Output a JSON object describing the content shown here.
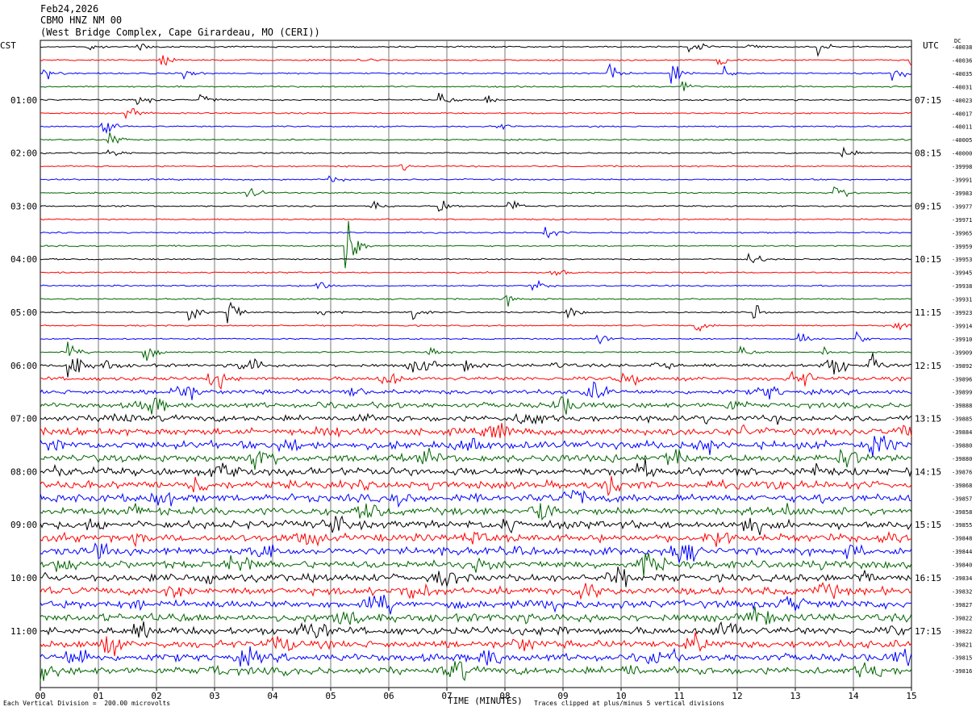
{
  "header": {
    "date": "Feb24,2026",
    "station": "CBMO HNZ NM 00",
    "location": "(West Bridge Complex, Cape Girardeau, MO (CERI))"
  },
  "left_timezone": "CST",
  "right_timezone": "UTC",
  "dc_label": "DC",
  "left_hour_labels": [
    "01:00",
    "02:00",
    "03:00",
    "04:00",
    "05:00",
    "06:00",
    "07:00",
    "08:00",
    "09:00",
    "10:00",
    "11:00"
  ],
  "right_hour_labels": [
    "07:15",
    "08:15",
    "09:15",
    "10:15",
    "11:15",
    "12:15",
    "13:15",
    "14:15",
    "15:15",
    "16:15",
    "17:15"
  ],
  "dc_offsets": [
    "-40038",
    "-40036",
    "-40035",
    "-40031",
    "-40023",
    "-40017",
    "-40011",
    "-40005",
    "-40000",
    "-39998",
    "-39991",
    "-39983",
    "-39977",
    "-39971",
    "-39965",
    "-39959",
    "-39953",
    "-39945",
    "-39938",
    "-39931",
    "-39923",
    "-39914",
    "-39910",
    "-39909",
    "-39892",
    "-39896",
    "-39899",
    "-39888",
    "-39885",
    "-39884",
    "-39880",
    "-39880",
    "-39876",
    "-39868",
    "-39857",
    "-39858",
    "-39855",
    "-39848",
    "-39844",
    "-39840",
    "-39834",
    "-39832",
    "-39827",
    "-39822",
    "-39822",
    "-39821",
    "-39815",
    "-39816"
  ],
  "x_axis": {
    "label": "TIME (MINUTES)",
    "ticks": [
      "00",
      "01",
      "02",
      "03",
      "04",
      "05",
      "06",
      "07",
      "08",
      "09",
      "10",
      "11",
      "12",
      "13",
      "14",
      "15"
    ]
  },
  "footer": {
    "scale_note": "Each Vertical Division =  200.00 microvolts",
    "clip_note": "Traces clipped at plus/minus 5 vertical divisions"
  },
  "colors": {
    "trace_cycle": [
      "#000000",
      "#ff0000",
      "#0000ff",
      "#006400"
    ],
    "grid": "#777777"
  },
  "chart_data": {
    "type": "helicorder",
    "rows": 48,
    "minutes_per_row": 15,
    "x_range_minutes": [
      0,
      15
    ],
    "events": [
      {
        "row": 0,
        "minute": 0.8,
        "amp": 0.4
      },
      {
        "row": 0,
        "minute": 1.7,
        "amp": 0.6
      },
      {
        "row": 0,
        "minute": 11.2,
        "amp": 0.8
      },
      {
        "row": 0,
        "minute": 12.2,
        "amp": 0.4
      },
      {
        "row": 0,
        "minute": 13.4,
        "amp": 0.5
      },
      {
        "row": 1,
        "minute": 2.1,
        "amp": 0.5
      },
      {
        "row": 1,
        "minute": 5.5,
        "amp": 0.4
      },
      {
        "row": 1,
        "minute": 11.7,
        "amp": 0.7
      },
      {
        "row": 1,
        "minute": 15.0,
        "amp": 0.8
      },
      {
        "row": 2,
        "minute": 0.1,
        "amp": 0.5
      },
      {
        "row": 2,
        "minute": 2.5,
        "amp": 0.6
      },
      {
        "row": 2,
        "minute": 9.8,
        "amp": 0.8
      },
      {
        "row": 2,
        "minute": 10.9,
        "amp": 0.9
      },
      {
        "row": 2,
        "minute": 11.8,
        "amp": 0.4
      },
      {
        "row": 2,
        "minute": 14.7,
        "amp": 1.0
      },
      {
        "row": 3,
        "minute": 11.1,
        "amp": 0.6
      },
      {
        "row": 4,
        "minute": 1.7,
        "amp": 0.5
      },
      {
        "row": 4,
        "minute": 2.8,
        "amp": 0.5
      },
      {
        "row": 4,
        "minute": 6.9,
        "amp": 0.8
      },
      {
        "row": 4,
        "minute": 7.7,
        "amp": 0.5
      },
      {
        "row": 5,
        "minute": 1.5,
        "amp": 0.6
      },
      {
        "row": 6,
        "minute": 1.1,
        "amp": 1.0
      },
      {
        "row": 6,
        "minute": 7.9,
        "amp": 0.3
      },
      {
        "row": 7,
        "minute": 1.2,
        "amp": 0.7
      },
      {
        "row": 8,
        "minute": 1.2,
        "amp": 0.4
      },
      {
        "row": 8,
        "minute": 13.8,
        "amp": 0.7
      },
      {
        "row": 9,
        "minute": 6.2,
        "amp": 0.4
      },
      {
        "row": 10,
        "minute": 5.0,
        "amp": 0.4
      },
      {
        "row": 11,
        "minute": 3.6,
        "amp": 0.6
      },
      {
        "row": 11,
        "minute": 13.7,
        "amp": 0.8
      },
      {
        "row": 12,
        "minute": 5.7,
        "amp": 0.5
      },
      {
        "row": 12,
        "minute": 6.9,
        "amp": 0.6
      },
      {
        "row": 12,
        "minute": 8.1,
        "amp": 0.6
      },
      {
        "row": 14,
        "minute": 8.7,
        "amp": 0.6
      },
      {
        "row": 15,
        "minute": 5.3,
        "amp": 3.0
      },
      {
        "row": 16,
        "minute": 12.2,
        "amp": 0.7
      },
      {
        "row": 17,
        "minute": 8.8,
        "amp": 0.9
      },
      {
        "row": 18,
        "minute": 4.8,
        "amp": 0.6
      },
      {
        "row": 18,
        "minute": 8.5,
        "amp": 0.5
      },
      {
        "row": 19,
        "minute": 8.0,
        "amp": 0.6
      },
      {
        "row": 20,
        "minute": 2.6,
        "amp": 0.6
      },
      {
        "row": 20,
        "minute": 3.2,
        "amp": 2.2
      },
      {
        "row": 20,
        "minute": 4.8,
        "amp": 0.4
      },
      {
        "row": 20,
        "minute": 6.4,
        "amp": 0.6
      },
      {
        "row": 20,
        "minute": 9.1,
        "amp": 0.5
      },
      {
        "row": 20,
        "minute": 12.3,
        "amp": 0.9
      },
      {
        "row": 21,
        "minute": 11.3,
        "amp": 0.5
      },
      {
        "row": 21,
        "minute": 14.7,
        "amp": 0.6
      },
      {
        "row": 22,
        "minute": 9.6,
        "amp": 0.8
      },
      {
        "row": 22,
        "minute": 13.1,
        "amp": 0.5
      },
      {
        "row": 22,
        "minute": 14.1,
        "amp": 0.5
      },
      {
        "row": 23,
        "minute": 0.5,
        "amp": 0.7
      },
      {
        "row": 23,
        "minute": 1.8,
        "amp": 0.8
      },
      {
        "row": 23,
        "minute": 6.7,
        "amp": 0.4
      },
      {
        "row": 23,
        "minute": 12.1,
        "amp": 0.6
      },
      {
        "row": 23,
        "minute": 13.5,
        "amp": 0.5
      },
      {
        "row": 24,
        "minute": 0.5,
        "amp": 1.6
      },
      {
        "row": 24,
        "minute": 1.1,
        "amp": 0.6
      },
      {
        "row": 24,
        "minute": 7.3,
        "amp": 0.6
      },
      {
        "row": 24,
        "minute": 8.8,
        "amp": 0.5
      },
      {
        "row": 24,
        "minute": 14.3,
        "amp": 0.9
      }
    ],
    "background_noise_growth_from_row": 24
  }
}
